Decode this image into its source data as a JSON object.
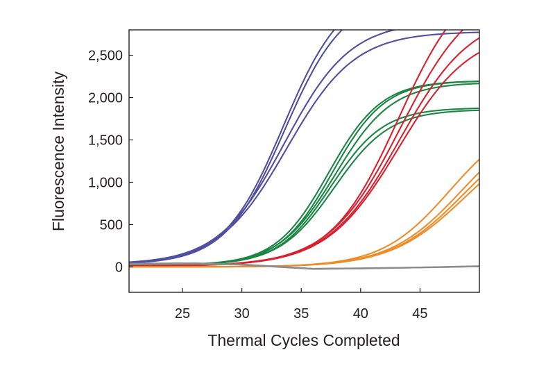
{
  "chart_data": {
    "type": "line",
    "title": "",
    "xlabel": "Thermal Cycles Completed",
    "ylabel": "Fluorescence Intensity",
    "xlim": [
      20.5,
      50
    ],
    "ylim": [
      -300,
      2800
    ],
    "x_ticks": [
      25,
      30,
      35,
      40,
      45
    ],
    "x_tick_labels": [
      "25",
      "30",
      "35",
      "40",
      "45"
    ],
    "y_ticks": [
      0,
      500,
      1000,
      1500,
      2000,
      2500
    ],
    "y_tick_labels": [
      "0",
      "500",
      "1,000",
      "1,500",
      "2,000",
      "2,500"
    ],
    "grid": false,
    "legend": "none",
    "x_start": 20.5,
    "colors": {
      "blue": "#4f4e9f",
      "green": "#1b8543",
      "red": "#d9202f",
      "orange": "#ef8c2a",
      "gray": "#8c8c8c"
    },
    "series": [
      {
        "name": "blue-1",
        "group": "blue",
        "color": "#4f4e9f",
        "plateau": 3300,
        "midpoint": 33.5,
        "slope": 0.4,
        "baseline": 30
      },
      {
        "name": "blue-2",
        "group": "blue",
        "color": "#4f4e9f",
        "plateau": 3200,
        "midpoint": 33.6,
        "slope": 0.4,
        "baseline": 30
      },
      {
        "name": "blue-3",
        "group": "blue",
        "color": "#4f4e9f",
        "plateau": 2900,
        "midpoint": 33.6,
        "slope": 0.36,
        "baseline": 30
      },
      {
        "name": "blue-4",
        "group": "blue",
        "color": "#4f4e9f",
        "plateau": 2780,
        "midpoint": 33.8,
        "slope": 0.35,
        "baseline": 30
      },
      {
        "name": "green-1",
        "group": "green",
        "color": "#1b8543",
        "plateau": 2200,
        "midpoint": 37.3,
        "slope": 0.45,
        "baseline": 20
      },
      {
        "name": "green-2",
        "group": "green",
        "color": "#1b8543",
        "plateau": 2200,
        "midpoint": 37.6,
        "slope": 0.45,
        "baseline": 20
      },
      {
        "name": "green-3",
        "group": "green",
        "color": "#1b8543",
        "plateau": 2180,
        "midpoint": 37.9,
        "slope": 0.42,
        "baseline": 20
      },
      {
        "name": "green-4",
        "group": "green",
        "color": "#1b8543",
        "plateau": 1880,
        "midpoint": 37.5,
        "slope": 0.45,
        "baseline": 20
      },
      {
        "name": "green-5",
        "group": "green",
        "color": "#1b8543",
        "plateau": 1860,
        "midpoint": 37.8,
        "slope": 0.43,
        "baseline": 20
      },
      {
        "name": "red-1",
        "group": "red",
        "color": "#d9202f",
        "plateau": 3500,
        "midpoint": 43.2,
        "slope": 0.35,
        "baseline": 10
      },
      {
        "name": "red-2",
        "group": "red",
        "color": "#d9202f",
        "plateau": 3300,
        "midpoint": 43.4,
        "slope": 0.33,
        "baseline": 10
      },
      {
        "name": "red-3",
        "group": "red",
        "color": "#d9202f",
        "plateau": 3000,
        "midpoint": 43.3,
        "slope": 0.33,
        "baseline": 10
      },
      {
        "name": "red-4",
        "group": "red",
        "color": "#d9202f",
        "plateau": 2800,
        "midpoint": 43.2,
        "slope": 0.33,
        "baseline": 10
      },
      {
        "name": "orange-1",
        "group": "orange",
        "color": "#ef8c2a",
        "plateau": 1800,
        "midpoint": 47.5,
        "slope": 0.35,
        "baseline": 0
      },
      {
        "name": "orange-2",
        "group": "orange",
        "color": "#ef8c2a",
        "plateau": 1800,
        "midpoint": 48.5,
        "slope": 0.33,
        "baseline": 0
      },
      {
        "name": "orange-3",
        "group": "orange",
        "color": "#ef8c2a",
        "plateau": 1700,
        "midpoint": 48.6,
        "slope": 0.33,
        "baseline": 0
      },
      {
        "name": "orange-4",
        "group": "orange",
        "color": "#ef8c2a",
        "plateau": 1650,
        "midpoint": 48.8,
        "slope": 0.32,
        "baseline": 0
      },
      {
        "name": "gray-1",
        "group": "gray",
        "color": "#8c8c8c",
        "plateau": 0,
        "midpoint": 0,
        "slope": 0,
        "baseline": 0,
        "points": [
          [
            20.5,
            40
          ],
          [
            26,
            45
          ],
          [
            30,
            30
          ],
          [
            33,
            5
          ],
          [
            36,
            -20
          ],
          [
            40,
            -15
          ],
          [
            45,
            -5
          ],
          [
            50,
            10
          ]
        ]
      },
      {
        "name": "gray-2",
        "group": "gray",
        "color": "#8c8c8c",
        "plateau": 0,
        "midpoint": 0,
        "slope": 0,
        "baseline": 0,
        "points": [
          [
            20.5,
            30
          ],
          [
            26,
            35
          ],
          [
            30,
            25
          ],
          [
            33,
            0
          ],
          [
            36,
            -25
          ],
          [
            40,
            -20
          ],
          [
            45,
            -8
          ],
          [
            50,
            5
          ]
        ]
      }
    ]
  }
}
